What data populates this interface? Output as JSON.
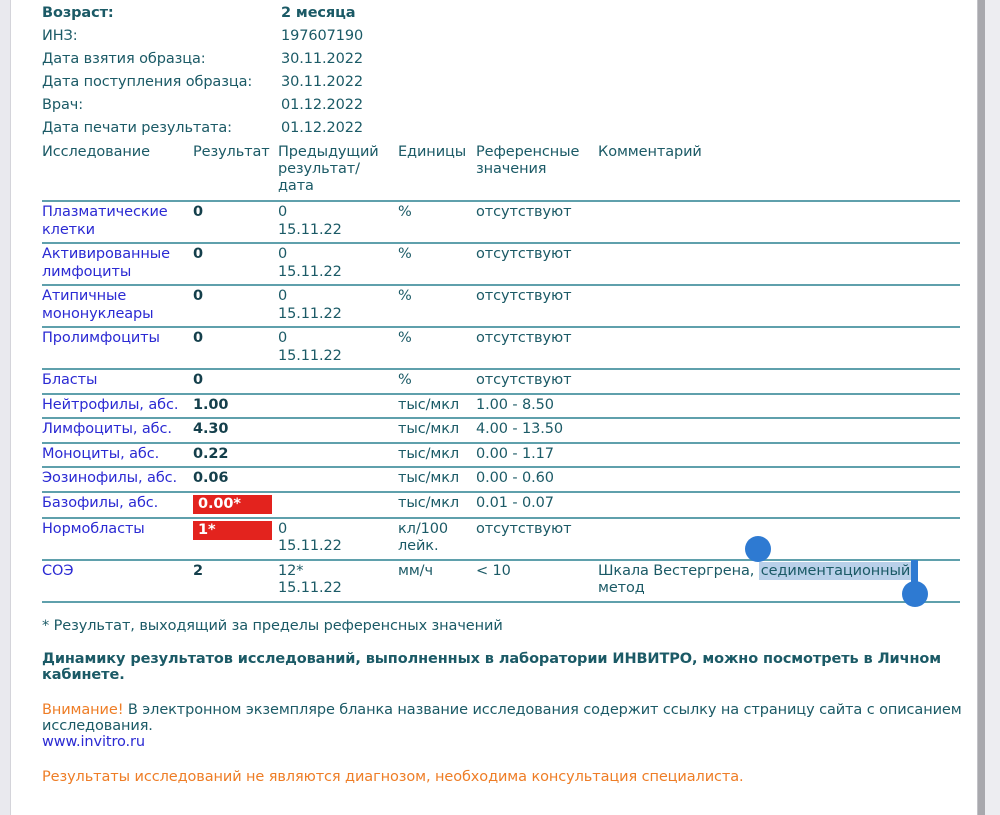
{
  "patient_info": {
    "rows": [
      {
        "label": "Возраст:",
        "value": "2 месяца"
      },
      {
        "label": "ИНЗ:",
        "value": "197607190"
      },
      {
        "label": "Дата взятия образца:",
        "value": "30.11.2022"
      },
      {
        "label": "Дата поступления образца:",
        "value": "30.11.2022"
      },
      {
        "label": "Врач:",
        "value": "01.12.2022"
      },
      {
        "label": "Дата печати результата:",
        "value": "01.12.2022"
      }
    ]
  },
  "table": {
    "headers": {
      "name": "Исследование",
      "result": "Результат",
      "prev": "Предыдущий результат/дата",
      "units": "Единицы",
      "ref": "Референсные значения",
      "comment": "Комментарий"
    },
    "rows": [
      {
        "name": "Плазматические клетки",
        "result": "0",
        "prev": "0",
        "prev_date": "15.11.22",
        "units": "%",
        "ref": "отсутствуют",
        "comment": ""
      },
      {
        "name": "Активированные лимфоциты",
        "result": "0",
        "prev": "0",
        "prev_date": "15.11.22",
        "units": "%",
        "ref": "отсутствуют",
        "comment": ""
      },
      {
        "name": "Атипичные мононуклеары",
        "result": "0",
        "prev": "0",
        "prev_date": "15.11.22",
        "units": "%",
        "ref": "отсутствуют",
        "comment": ""
      },
      {
        "name": "Пролимфоциты",
        "result": "0",
        "prev": "0",
        "prev_date": "15.11.22",
        "units": "%",
        "ref": "отсутствуют",
        "comment": ""
      },
      {
        "name": "Бласты",
        "result": "0",
        "prev": "",
        "prev_date": "",
        "units": "%",
        "ref": "отсутствуют",
        "comment": ""
      },
      {
        "name": "Нейтрофилы, абс.",
        "result": "1.00",
        "prev": "",
        "prev_date": "",
        "units": "тыс/мкл",
        "ref": "1.00 - 8.50",
        "comment": ""
      },
      {
        "name": "Лимфоциты, абс.",
        "result": "4.30",
        "prev": "",
        "prev_date": "",
        "units": "тыс/мкл",
        "ref": "4.00 - 13.50",
        "comment": ""
      },
      {
        "name": "Моноциты, абс.",
        "result": "0.22",
        "prev": "",
        "prev_date": "",
        "units": "тыс/мкл",
        "ref": "0.00 - 1.17",
        "comment": ""
      },
      {
        "name": "Эозинофилы, абс.",
        "result": "0.06",
        "prev": "",
        "prev_date": "",
        "units": "тыс/мкл",
        "ref": "0.00 - 0.60",
        "comment": ""
      },
      {
        "name": "Базофилы, абс.",
        "result": "0.00*",
        "flagged": true,
        "prev": "",
        "prev_date": "",
        "units": "тыс/мкл",
        "ref": "0.01 - 0.07",
        "comment": ""
      },
      {
        "name": "Нормобласты",
        "result": "1*",
        "flagged": true,
        "prev": "0",
        "prev_date": "15.11.22",
        "units": "кл/100 лейк.",
        "ref": "отсутствуют",
        "comment": ""
      },
      {
        "name": "СОЭ",
        "result": "2",
        "prev": "12*",
        "prev_date": "15.11.22",
        "units": "мм/ч",
        "ref": "< 10",
        "comment": "Шкала Вестергрена, седиментационный метод"
      }
    ]
  },
  "selection": {
    "before": "Шкала Вестергрена, ",
    "selected": "седиментационный",
    "after": " метод"
  },
  "footnotes": {
    "asterisk": "* Результат, выходящий за пределы референсных значений",
    "dynamics": "Динамику результатов исследований, выполненных в лаборатории ИНВИТРО, можно посмотреть в Личном кабинете.",
    "warning_label": "Внимание!",
    "warning_text": " В электронном экземпляре бланка название исследования содержит ссылку на страницу сайта с описанием исследования.",
    "link": "www.invitro.ru",
    "disclaimer": "Результаты исследований не являются диагнозом, необходима консультация специалиста."
  },
  "colors": {
    "teal_text": "#1b5a66",
    "result_dark": "#143f4b",
    "link_blue": "#2b2ad3",
    "separator_teal": "#5fa0ac",
    "flag_red": "#e3231e",
    "warning_orange": "#ee7d26",
    "selection_highlight": "#b9d0e9",
    "selection_handle_blue": "#2e7ad2"
  }
}
